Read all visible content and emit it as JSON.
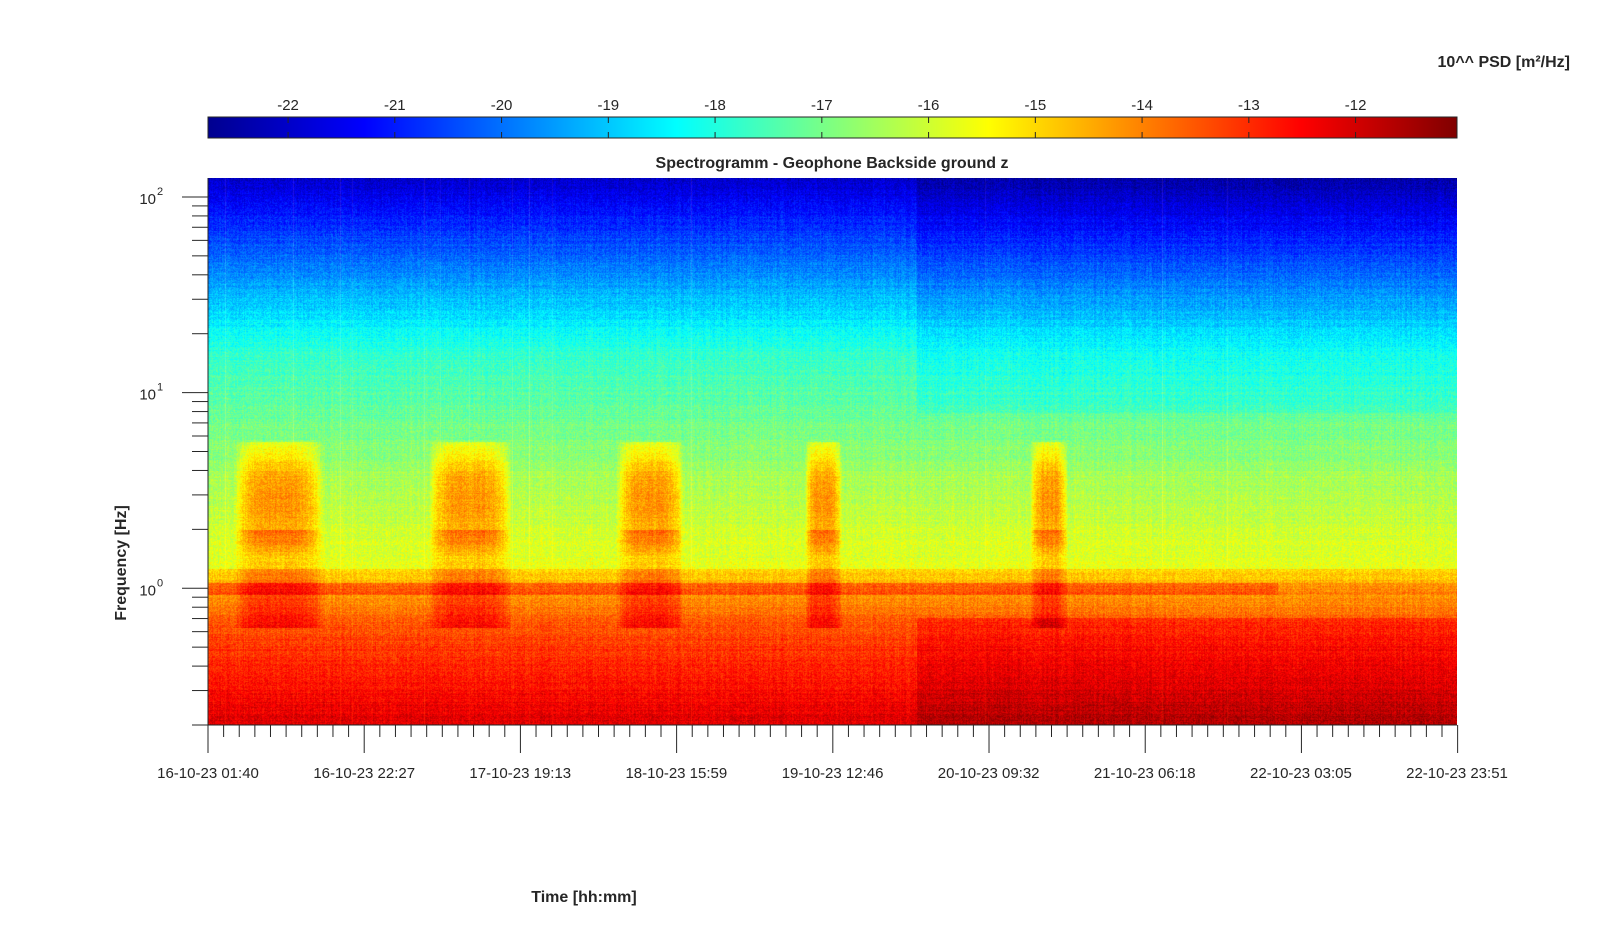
{
  "chart_data": {
    "type": "heatmap",
    "title": "Spectrogramm - Geophone Backside ground z",
    "xlabel": "Time [hh:mm]",
    "ylabel": "Frequency [Hz]",
    "x_tick_labels": [
      "16-10-23 01:40",
      "16-10-23 22:27",
      "17-10-23 19:13",
      "18-10-23 15:59",
      "19-10-23 12:46",
      "20-10-23 09:32",
      "21-10-23 06:18",
      "22-10-23 03:05",
      "22-10-23 23:51"
    ],
    "x_range": [
      "16-10-23 01:40",
      "22-10-23 23:51"
    ],
    "y_scale": "log",
    "y_range": [
      0.2,
      125
    ],
    "y_tick_labels": [
      {
        "base": "10",
        "exp": "0"
      },
      {
        "base": "10",
        "exp": "1"
      },
      {
        "base": "10",
        "exp": "2"
      }
    ],
    "colorbar": {
      "label": "10^^ PSD [m²/Hz]",
      "colormap": "jet",
      "position": "top",
      "range": [
        -22.75,
        -11.05
      ],
      "tick_labels": [
        "-22",
        "-21",
        "-20",
        "-19",
        "-18",
        "-17",
        "-16",
        "-15",
        "-14",
        "-13",
        "-12"
      ]
    },
    "day_activity_periods": [
      [
        "16-10-23 05:00",
        "16-10-23 17:00"
      ],
      [
        "17-10-23 07:00",
        "17-10-23 18:00"
      ],
      [
        "18-10-23 08:00",
        "18-10-23 17:00"
      ],
      [
        "19-10-23 09:00",
        "19-10-23 14:00"
      ],
      [
        "20-10-23 15:00",
        "20-10-23 20:00"
      ]
    ],
    "day_activity_band_hz": [
      2,
      5
    ],
    "resonance_band_hz": 1,
    "level_change_time": "20-10-23 00:00",
    "grid": false
  }
}
